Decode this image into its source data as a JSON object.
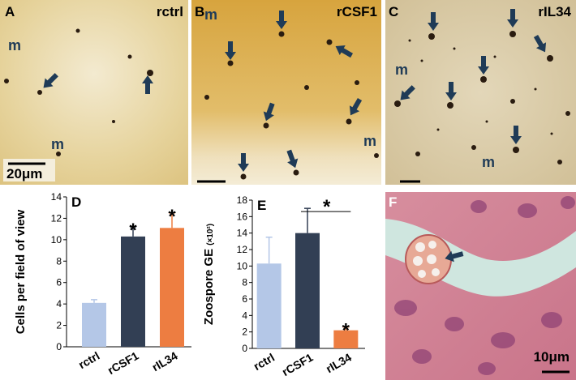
{
  "panels": [
    {
      "letter": "A",
      "condition": "rctrl",
      "markers": [
        "m",
        "m"
      ],
      "scale": "20μm"
    },
    {
      "letter": "B",
      "condition": "rCSF1",
      "markers": [
        "m",
        "m"
      ]
    },
    {
      "letter": "C",
      "condition": "rIL34",
      "markers": [
        "m",
        "m"
      ]
    },
    {
      "letter": "F",
      "scale": "10μm"
    }
  ],
  "chart_data": [
    {
      "type": "bar",
      "title": "D",
      "ylabel": "Cells per field of view",
      "categories": [
        "rctrl",
        "rCSF1",
        "rIL34"
      ],
      "values": [
        4.1,
        10.3,
        11.1
      ],
      "errors": [
        0.3,
        0.9,
        1.4
      ],
      "colors": [
        "#b4c7e7",
        "#323f54",
        "#ed7d41"
      ],
      "ylim": [
        0,
        14
      ],
      "yticks": [
        0,
        2,
        4,
        6,
        8,
        10,
        12,
        14
      ],
      "annotations": [
        {
          "label": "*",
          "x": "rCSF1"
        },
        {
          "label": "*",
          "x": "rIL34"
        }
      ]
    },
    {
      "type": "bar",
      "title": "E",
      "ylabel": "Zoospore GE",
      "ylabel_unit": "(×10²)",
      "categories": [
        "rctrl",
        "rCSF1",
        "rIL34"
      ],
      "values": [
        10.3,
        14.0,
        2.2
      ],
      "errors": [
        3.2,
        3.0,
        0.4
      ],
      "colors": [
        "#b4c7e7",
        "#323f54",
        "#ed7d41"
      ],
      "ylim": [
        0,
        18
      ],
      "yticks": [
        0,
        2,
        4,
        6,
        8,
        10,
        12,
        14,
        16,
        18
      ],
      "annotations": [
        {
          "label": "*",
          "x": [
            "rCSF1",
            "rIL34"
          ]
        },
        {
          "label": "*",
          "x": "rIL34"
        }
      ]
    }
  ]
}
